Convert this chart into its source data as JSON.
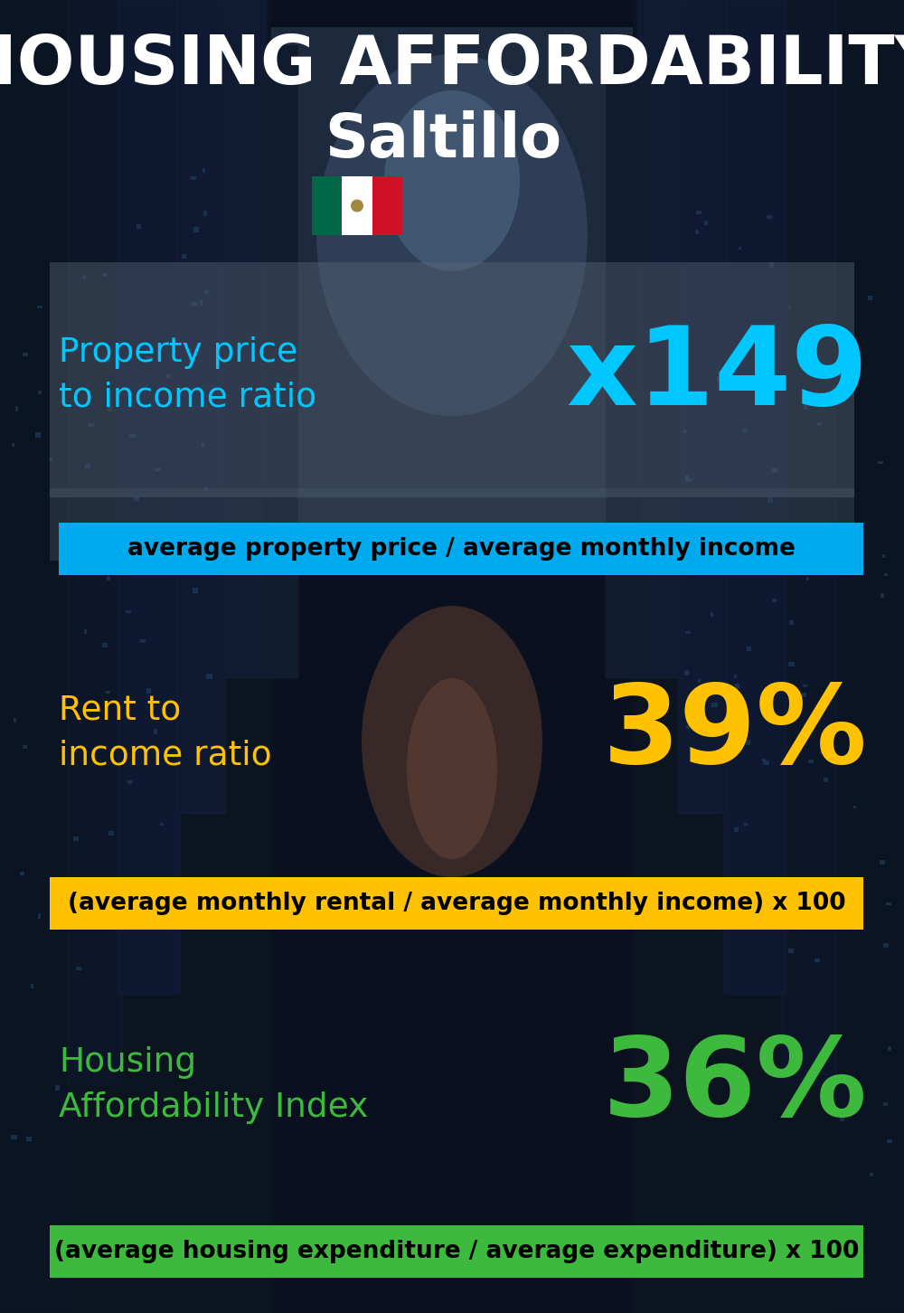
{
  "title_line1": "HOUSING AFFORDABILITY",
  "title_line2": "Saltillo",
  "bg_color": "#080e18",
  "section1_label": "Property price\nto income ratio",
  "section1_value": "x149",
  "section1_label_color": "#00c8ff",
  "section1_value_color": "#00c8ff",
  "section1_banner_text": "average property price / average monthly income",
  "section1_banner_bg": "#00aaee",
  "section1_banner_text_color": "#000000",
  "section2_label": "Rent to\nincome ratio",
  "section2_value": "39%",
  "section2_label_color": "#ffc200",
  "section2_value_color": "#ffc200",
  "section2_banner_text": "(average monthly rental / average monthly income) x 100",
  "section2_banner_bg": "#ffc200",
  "section2_banner_text_color": "#000000",
  "section3_label": "Housing\nAffordability Index",
  "section3_value": "36%",
  "section3_label_color": "#3dba3d",
  "section3_value_color": "#3dba3d",
  "section3_banner_text": "(average housing expenditure / average expenditure) x 100",
  "section3_banner_bg": "#3dba3d",
  "section3_banner_text_color": "#000000",
  "flag_green": "#006847",
  "flag_white": "#ffffff",
  "flag_red": "#ce1126",
  "title_color": "#ffffff",
  "title_fontsize": 54,
  "subtitle_fontsize": 48,
  "label_fontsize": 27,
  "value_fontsize": 88,
  "banner_fontsize": 19
}
